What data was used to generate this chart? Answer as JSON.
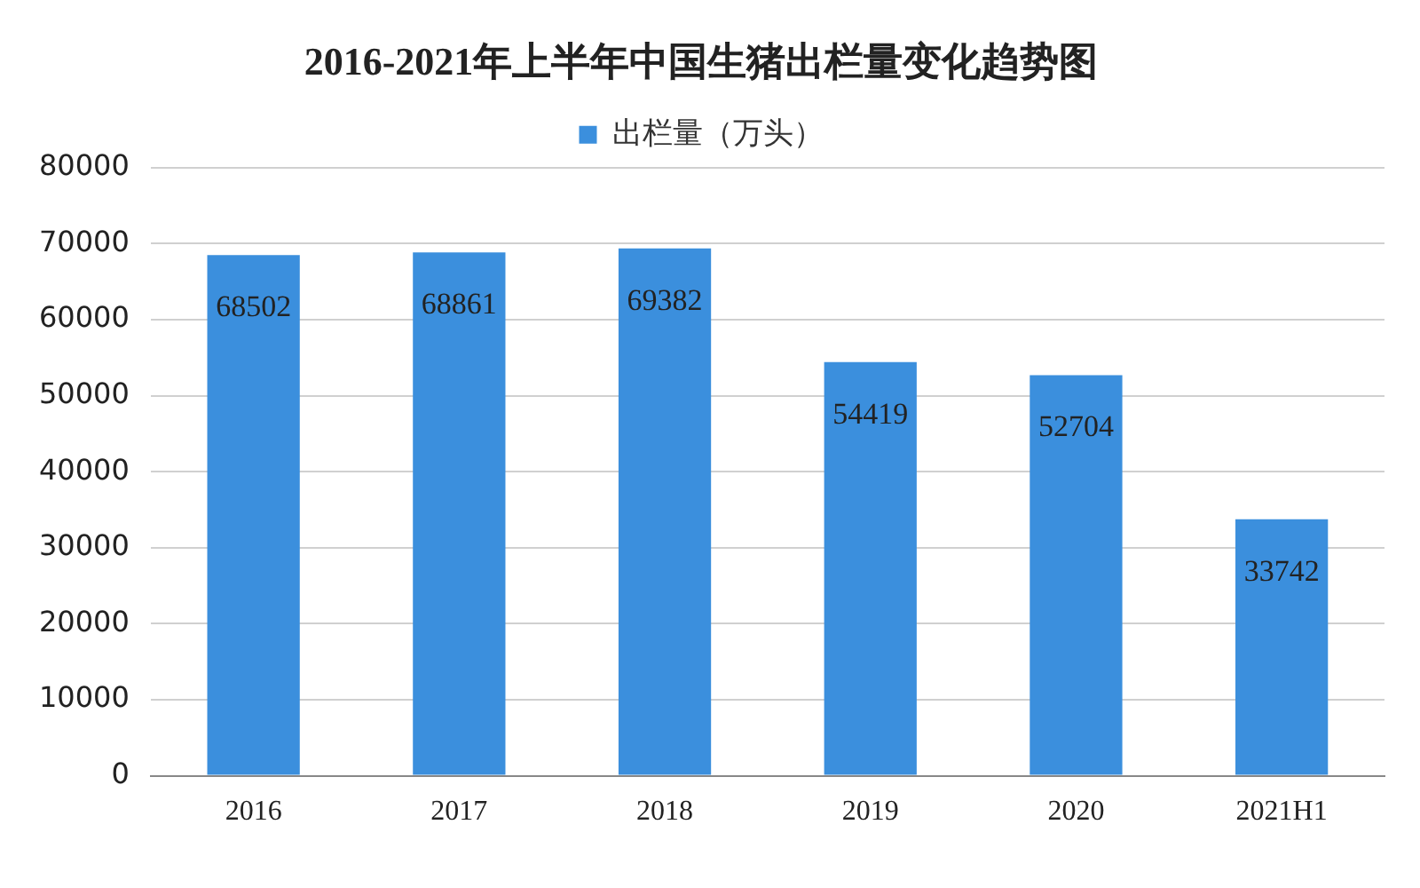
{
  "chart_data": {
    "type": "bar",
    "title": "2016-2021年上半年中国生猪出栏量变化趋势图",
    "categories": [
      "2016",
      "2017",
      "2018",
      "2019",
      "2020",
      "2021H1"
    ],
    "series": [
      {
        "name": "出栏量（万头）",
        "color": "#3b8fdd",
        "values": [
          68502,
          68861,
          69382,
          54419,
          52704,
          33742
        ]
      }
    ],
    "ylim": [
      0,
      80000
    ],
    "yticks": [
      0,
      10000,
      20000,
      30000,
      40000,
      50000,
      60000,
      70000,
      80000
    ],
    "grid": "y",
    "legend": "top",
    "data_labels": true
  }
}
